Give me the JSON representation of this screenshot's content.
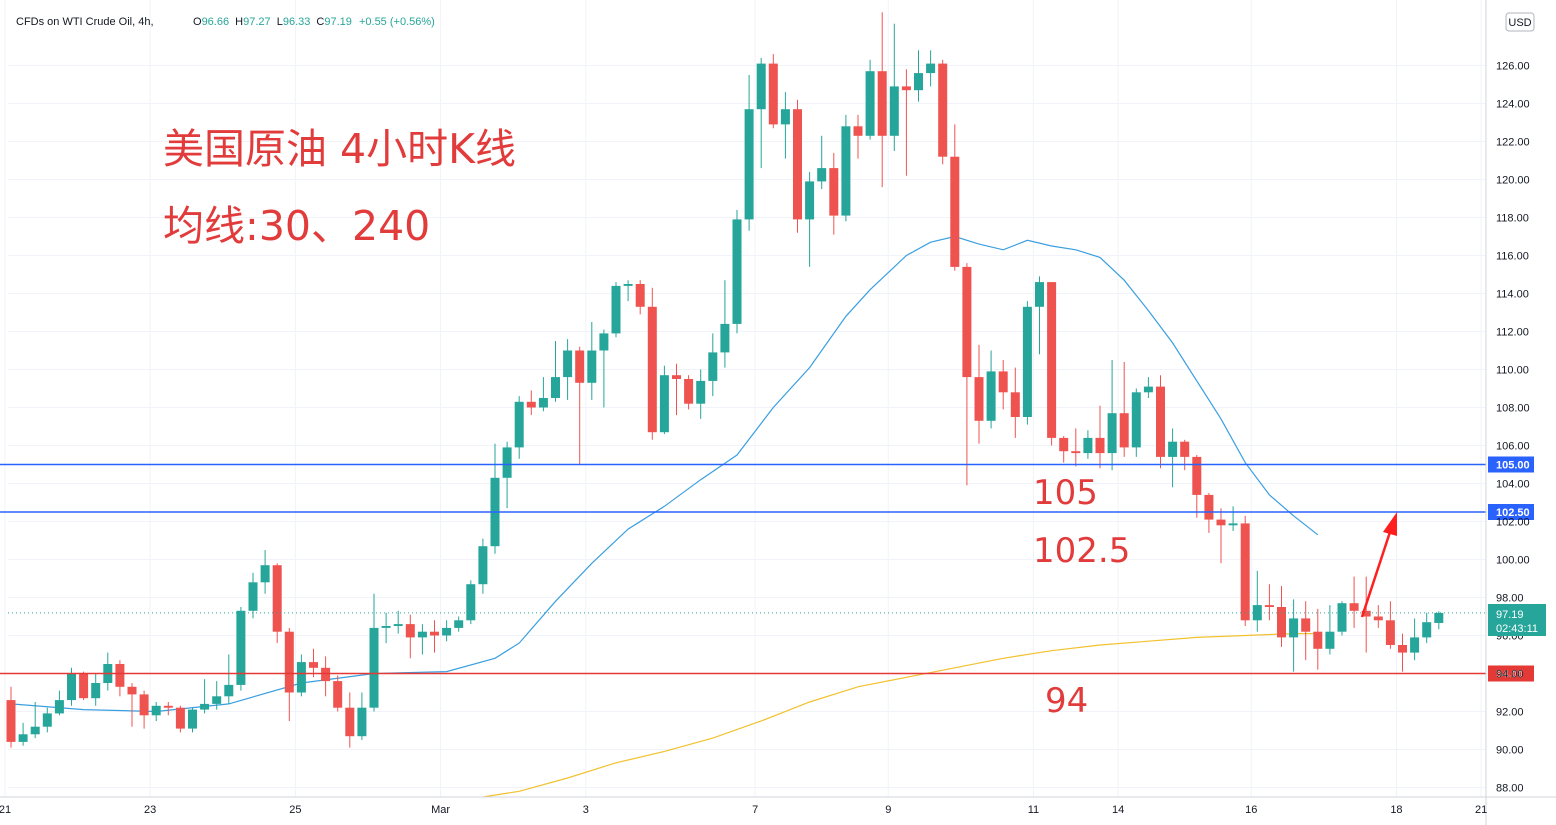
{
  "header": {
    "symbol": "CFDs on WTI Crude Oil, 4h,",
    "ohlc": [
      {
        "k": "O",
        "v": "96.66"
      },
      {
        "k": "H",
        "v": "97.27"
      },
      {
        "k": "L",
        "v": "96.33"
      },
      {
        "k": "C",
        "v": "97.19"
      },
      {
        "k": "",
        "v": "+0.55 (+0.56%)"
      }
    ]
  },
  "currency_badge": "USD",
  "annotations": {
    "title_line1": "美国原油 4小时K线",
    "title_line2": "均线:30、240",
    "label_105": "105",
    "label_1025": "102.5",
    "label_94": "94"
  },
  "price_tag": {
    "price": "97.19",
    "countdown": "02:43:11"
  },
  "colors": {
    "up": "#26a69a",
    "down": "#ef5350",
    "ma30": "#3a9fe0",
    "ma240": "#f2c12e",
    "resistance": "#2962ff",
    "support": "#e53935",
    "annotation": "#e23b3b"
  },
  "chart_data": {
    "type": "candlestick",
    "symbol": "CFDs on WTI Crude Oil",
    "interval": "4h",
    "ylim": [
      87.5,
      129
    ],
    "y_ticks": [
      88,
      90,
      92,
      94,
      96,
      98,
      100,
      102,
      104,
      106,
      108,
      110,
      112,
      114,
      116,
      118,
      120,
      122,
      124,
      126
    ],
    "x_ticks": [
      {
        "label": "21",
        "index": -0.5
      },
      {
        "label": "23",
        "index": 11.5
      },
      {
        "label": "25",
        "index": 23.5
      },
      {
        "label": "Mar",
        "index": 35.5
      },
      {
        "label": "3",
        "index": 47.5
      },
      {
        "label": "7",
        "index": 61.5
      },
      {
        "label": "9",
        "index": 72.5
      },
      {
        "label": "11",
        "index": 84.5
      },
      {
        "label": "14",
        "index": 91.5
      },
      {
        "label": "16",
        "index": 102.5
      },
      {
        "label": "18",
        "index": 114.5
      },
      {
        "label": "21",
        "index": 121.5
      }
    ],
    "candles": [
      [
        92.6,
        90.4,
        93.3,
        90.1
      ],
      [
        90.4,
        90.8,
        91.4,
        90.2
      ],
      [
        90.8,
        91.2,
        92.5,
        90.6
      ],
      [
        91.2,
        91.9,
        92.2,
        90.9
      ],
      [
        91.9,
        92.6,
        93.1,
        91.8
      ],
      [
        92.6,
        94.0,
        94.3,
        92.3
      ],
      [
        94.0,
        92.7,
        94.1,
        92.6
      ],
      [
        92.7,
        93.5,
        94.0,
        92.3
      ],
      [
        93.5,
        94.5,
        95.1,
        93.1
      ],
      [
        94.5,
        93.3,
        94.7,
        92.8
      ],
      [
        93.3,
        92.9,
        93.5,
        91.2
      ],
      [
        92.9,
        91.8,
        93.1,
        91.1
      ],
      [
        91.8,
        92.3,
        92.5,
        91.5
      ],
      [
        92.3,
        92.2,
        92.5,
        91.8
      ],
      [
        92.2,
        91.1,
        92.3,
        90.9
      ],
      [
        91.1,
        92.1,
        92.2,
        90.9
      ],
      [
        92.1,
        92.4,
        93.7,
        91.9
      ],
      [
        92.4,
        92.8,
        93.6,
        92.1
      ],
      [
        92.8,
        93.4,
        95.0,
        92.4
      ],
      [
        93.4,
        97.3,
        97.5,
        93.1
      ],
      [
        97.3,
        98.8,
        99.3,
        96.9
      ],
      [
        98.8,
        99.7,
        100.5,
        98.2
      ],
      [
        99.7,
        96.2,
        99.8,
        95.6
      ],
      [
        96.2,
        93.0,
        96.4,
        91.5
      ],
      [
        93.0,
        94.6,
        95.0,
        92.8
      ],
      [
        94.6,
        94.3,
        95.3,
        93.8
      ],
      [
        94.3,
        93.6,
        94.9,
        92.8
      ],
      [
        93.6,
        92.2,
        93.9,
        92.0
      ],
      [
        92.2,
        90.7,
        93.0,
        90.1
      ],
      [
        90.7,
        92.2,
        93.0,
        90.5
      ],
      [
        92.2,
        96.4,
        98.2,
        92.0
      ],
      [
        96.4,
        96.5,
        97.2,
        95.6
      ],
      [
        96.5,
        96.6,
        97.3,
        96.1
      ],
      [
        96.6,
        95.9,
        97.1,
        94.8
      ],
      [
        95.9,
        96.2,
        96.6,
        95.0
      ],
      [
        96.2,
        96.0,
        96.8,
        95.1
      ],
      [
        96.0,
        96.4,
        96.8,
        95.7
      ],
      [
        96.4,
        96.8,
        97.0,
        96.2
      ],
      [
        96.8,
        98.7,
        98.9,
        96.6
      ],
      [
        98.7,
        100.7,
        101.1,
        98.2
      ],
      [
        100.7,
        104.3,
        106.1,
        100.3
      ],
      [
        104.3,
        105.9,
        106.2,
        102.7
      ],
      [
        105.9,
        108.3,
        108.6,
        105.3
      ],
      [
        108.3,
        108.0,
        108.9,
        107.6
      ],
      [
        108.0,
        108.5,
        109.6,
        107.8
      ],
      [
        108.5,
        109.6,
        111.5,
        108.3
      ],
      [
        109.6,
        111.0,
        111.6,
        108.4
      ],
      [
        111.0,
        109.3,
        111.2,
        105.0
      ],
      [
        109.3,
        111.0,
        112.5,
        108.4
      ],
      [
        111.0,
        111.9,
        112.1,
        108.0
      ],
      [
        111.9,
        114.4,
        114.6,
        111.7
      ],
      [
        114.4,
        114.5,
        114.7,
        113.6
      ],
      [
        114.5,
        113.3,
        114.7,
        112.9
      ],
      [
        113.3,
        106.7,
        114.3,
        106.3
      ],
      [
        106.7,
        109.7,
        110.2,
        106.6
      ],
      [
        109.7,
        109.5,
        110.3,
        107.6
      ],
      [
        109.5,
        108.2,
        109.7,
        107.9
      ],
      [
        108.2,
        109.4,
        110.0,
        107.4
      ],
      [
        109.4,
        110.9,
        111.9,
        108.6
      ],
      [
        110.9,
        112.4,
        114.7,
        110.1
      ],
      [
        112.4,
        117.9,
        118.4,
        111.9
      ],
      [
        117.9,
        123.7,
        125.5,
        117.3
      ],
      [
        123.7,
        126.1,
        126.4,
        120.6
      ],
      [
        126.1,
        122.9,
        126.6,
        122.7
      ],
      [
        122.9,
        123.7,
        124.6,
        121.1
      ],
      [
        123.7,
        117.9,
        124.2,
        117.2
      ],
      [
        117.9,
        119.9,
        120.4,
        115.4
      ],
      [
        119.9,
        120.6,
        122.3,
        119.5
      ],
      [
        120.6,
        118.1,
        121.4,
        117.1
      ],
      [
        118.1,
        122.8,
        123.4,
        117.8
      ],
      [
        122.8,
        122.3,
        123.4,
        121.1
      ],
      [
        122.3,
        125.7,
        126.3,
        122.1
      ],
      [
        125.7,
        122.3,
        128.8,
        119.6
      ],
      [
        122.3,
        124.9,
        128.2,
        121.5
      ],
      [
        124.9,
        124.7,
        125.8,
        120.2
      ],
      [
        124.7,
        125.6,
        126.8,
        124.1
      ],
      [
        125.6,
        126.1,
        126.8,
        124.9
      ],
      [
        126.1,
        121.2,
        126.3,
        120.8
      ],
      [
        121.2,
        115.4,
        122.9,
        115.2
      ],
      [
        115.4,
        109.6,
        115.6,
        103.9
      ],
      [
        109.6,
        107.3,
        111.3,
        106.1
      ],
      [
        107.3,
        109.9,
        111.0,
        106.9
      ],
      [
        109.9,
        108.8,
        110.5,
        107.9
      ],
      [
        108.8,
        107.5,
        110.1,
        106.4
      ],
      [
        107.5,
        113.3,
        113.6,
        107.1
      ],
      [
        113.3,
        114.6,
        114.9,
        110.8
      ],
      [
        114.6,
        106.4,
        114.6,
        106.0
      ],
      [
        106.4,
        105.7,
        106.5,
        105.1
      ],
      [
        105.7,
        105.6,
        106.9,
        104.9
      ],
      [
        105.6,
        106.4,
        106.8,
        105.3
      ],
      [
        106.4,
        105.6,
        108.1,
        104.8
      ],
      [
        105.6,
        107.7,
        110.5,
        104.7
      ],
      [
        107.7,
        105.9,
        110.4,
        105.4
      ],
      [
        105.9,
        108.8,
        109.0,
        105.4
      ],
      [
        108.8,
        109.1,
        109.6,
        108.5
      ],
      [
        109.1,
        105.4,
        109.7,
        104.8
      ],
      [
        105.4,
        106.2,
        106.9,
        103.8
      ],
      [
        106.2,
        105.4,
        106.3,
        104.7
      ],
      [
        105.4,
        103.4,
        105.5,
        102.2
      ],
      [
        103.4,
        102.1,
        103.5,
        101.4
      ],
      [
        102.1,
        101.8,
        102.7,
        99.8
      ],
      [
        101.8,
        101.9,
        102.8,
        101.5
      ],
      [
        101.9,
        96.8,
        102.3,
        96.5
      ],
      [
        96.8,
        97.6,
        99.4,
        96.2
      ],
      [
        97.6,
        97.5,
        98.7,
        96.8
      ],
      [
        97.5,
        95.9,
        98.6,
        95.4
      ],
      [
        95.9,
        96.9,
        97.9,
        94.1
      ],
      [
        96.9,
        96.2,
        97.8,
        94.7
      ],
      [
        96.2,
        95.3,
        97.4,
        94.2
      ],
      [
        95.3,
        96.2,
        97.6,
        95.0
      ],
      [
        96.2,
        97.7,
        97.8,
        96.0
      ],
      [
        97.7,
        97.3,
        99.1,
        96.4
      ],
      [
        97.3,
        97.0,
        99.1,
        95.1
      ],
      [
        97.0,
        96.8,
        97.6,
        96.4
      ],
      [
        96.8,
        95.5,
        97.8,
        95.3
      ],
      [
        95.5,
        95.1,
        96.1,
        94.1
      ],
      [
        95.1,
        95.9,
        96.9,
        94.7
      ],
      [
        95.9,
        96.7,
        97.2,
        95.6
      ],
      [
        96.66,
        97.19,
        97.27,
        96.33
      ]
    ],
    "series": [
      {
        "type": "line",
        "period": 30,
        "points": [
          [
            0,
            92.4
          ],
          [
            6,
            92.1
          ],
          [
            12,
            92.0
          ],
          [
            18,
            92.4
          ],
          [
            24,
            93.5
          ],
          [
            30,
            94.0
          ],
          [
            36,
            94.1
          ],
          [
            40,
            94.8
          ],
          [
            42,
            95.6
          ],
          [
            45,
            97.8
          ],
          [
            48,
            99.8
          ],
          [
            51,
            101.6
          ],
          [
            54,
            102.8
          ],
          [
            57,
            104.2
          ],
          [
            60,
            105.5
          ],
          [
            63,
            108.0
          ],
          [
            66,
            110.1
          ],
          [
            69,
            112.8
          ],
          [
            71,
            114.2
          ],
          [
            74,
            116.0
          ],
          [
            76,
            116.7
          ],
          [
            78,
            117.0
          ],
          [
            80,
            116.6
          ],
          [
            82,
            116.3
          ],
          [
            84,
            116.8
          ],
          [
            86,
            116.5
          ],
          [
            88,
            116.3
          ],
          [
            90,
            115.9
          ],
          [
            92,
            114.7
          ],
          [
            94,
            113.1
          ],
          [
            96,
            111.4
          ],
          [
            98,
            109.4
          ],
          [
            100,
            107.4
          ],
          [
            102,
            105.1
          ],
          [
            104,
            103.4
          ],
          [
            106,
            102.3
          ],
          [
            108,
            101.3
          ]
        ]
      },
      {
        "type": "line",
        "period": 240,
        "points": [
          [
            39,
            87.5
          ],
          [
            42,
            87.8
          ],
          [
            46,
            88.5
          ],
          [
            50,
            89.3
          ],
          [
            54,
            89.9
          ],
          [
            58,
            90.6
          ],
          [
            62,
            91.5
          ],
          [
            66,
            92.5
          ],
          [
            70,
            93.3
          ],
          [
            74,
            93.8
          ],
          [
            78,
            94.3
          ],
          [
            82,
            94.8
          ],
          [
            86,
            95.2
          ],
          [
            90,
            95.5
          ],
          [
            94,
            95.7
          ],
          [
            98,
            95.9
          ],
          [
            102,
            96.0
          ],
          [
            106,
            96.1
          ],
          [
            108,
            96.1
          ]
        ]
      }
    ],
    "levels": [
      {
        "price": 105.0,
        "label": "105.00",
        "color": "#2962ff"
      },
      {
        "price": 102.5,
        "label": "102.50",
        "color": "#2962ff"
      },
      {
        "price": 94.0,
        "label": "94.00",
        "color": "#e53935"
      }
    ],
    "last_price": 97.19
  }
}
